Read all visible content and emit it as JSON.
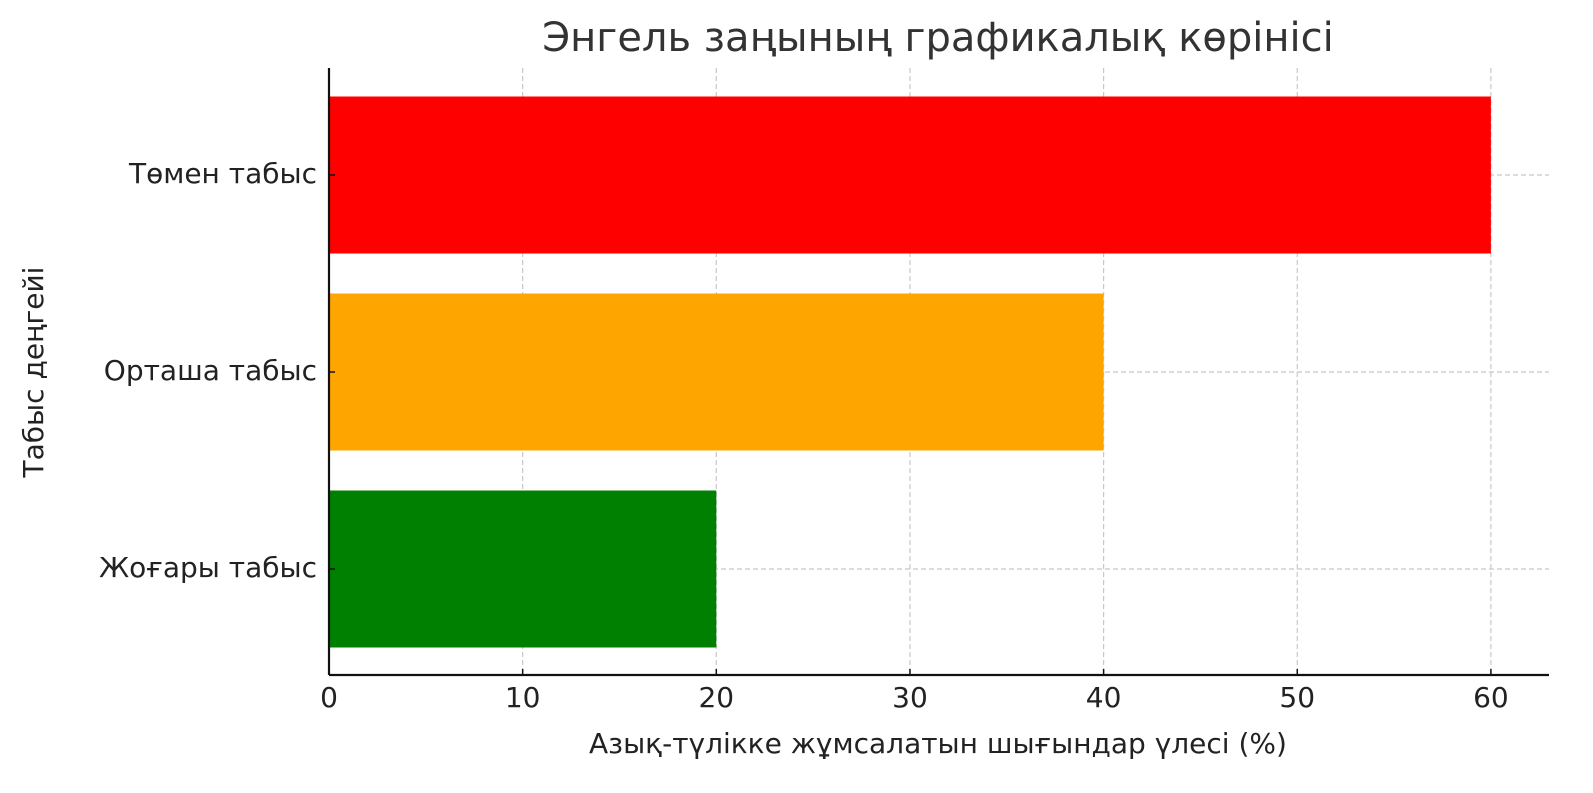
{
  "chart_data": {
    "type": "barh",
    "title": "Энгель заңының графикалық көрінісі",
    "x_label": "Азық-түлікке жұмсалатын шығындар үлесі (%)",
    "y_label": "Табыс деңгейі",
    "categories": [
      "Төмен табыс",
      "Орташа табыс",
      "Жоғары табыс"
    ],
    "values": [
      60,
      40,
      20
    ],
    "colors": [
      "#ff0000",
      "#ffa500",
      "#008000"
    ],
    "xlim": [
      0,
      63
    ],
    "xticks": [
      0,
      10,
      20,
      30,
      40,
      50,
      60
    ],
    "grid": true
  }
}
